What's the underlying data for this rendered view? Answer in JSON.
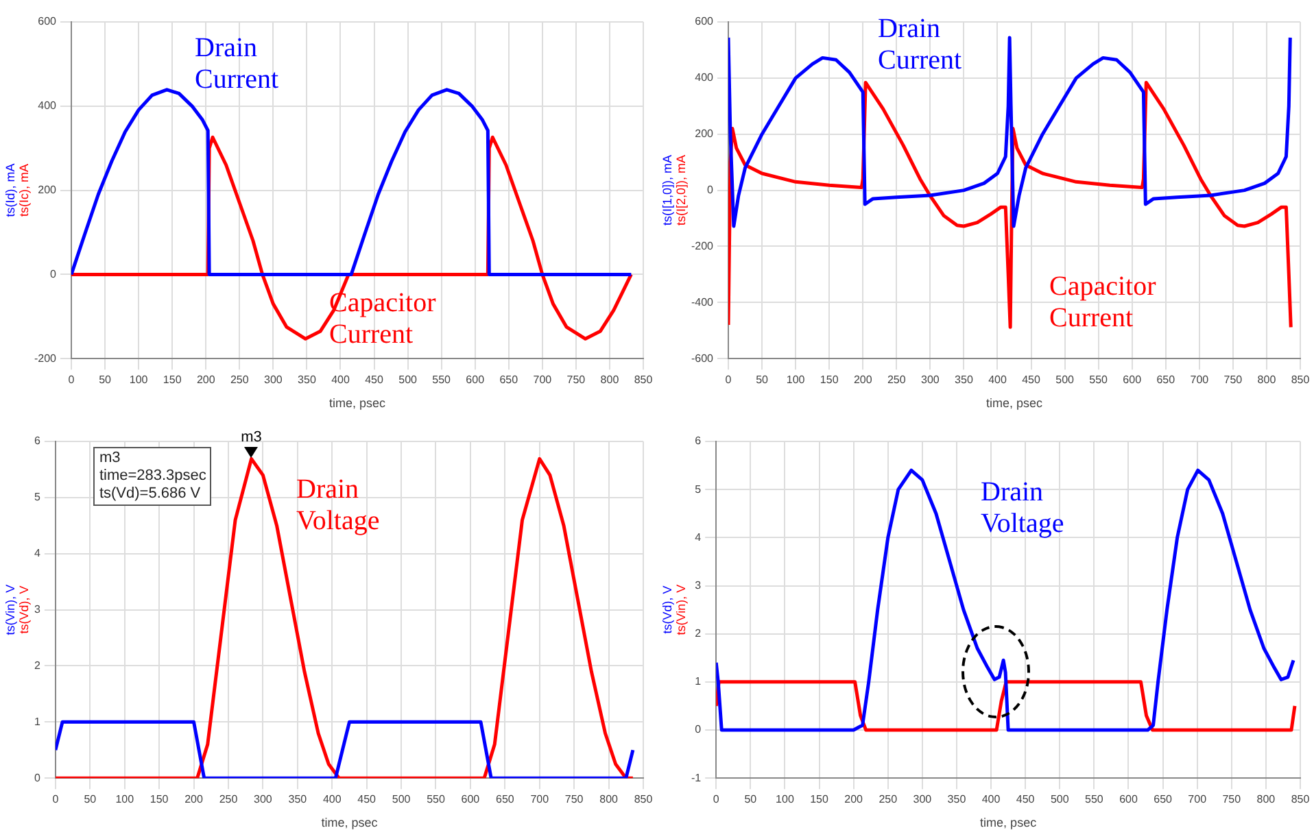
{
  "chart_data": [
    {
      "type": "line",
      "xlabel": "time, psec",
      "xlim": [
        0,
        850
      ],
      "xticks": [
        0,
        50,
        100,
        150,
        200,
        250,
        300,
        350,
        400,
        450,
        500,
        550,
        600,
        650,
        700,
        750,
        800,
        850
      ],
      "ylim": [
        -200,
        600
      ],
      "yticks": [
        -200,
        0,
        200,
        400,
        600
      ],
      "grid": true,
      "marker": "none",
      "line_style": "solid",
      "annotations": [
        "Drain Current",
        "Capacitor Current"
      ],
      "series": [
        {
          "name": "ts(Id), mA",
          "color": "#0000ff",
          "x": [
            0,
            20,
            40,
            60,
            80,
            100,
            120,
            142,
            160,
            180,
            195,
            203,
            205,
            416,
            436,
            456,
            476,
            496,
            516,
            536,
            558,
            576,
            596,
            611,
            619,
            621,
            832
          ],
          "values": [
            0,
            96,
            190,
            269,
            339,
            391,
            426,
            439,
            430,
            399,
            367,
            342,
            0,
            0,
            96,
            190,
            269,
            339,
            391,
            426,
            439,
            430,
            399,
            367,
            342,
            0,
            0
          ]
        },
        {
          "name": "ts(Ic), mA",
          "color": "#ff0000",
          "x": [
            0,
            203,
            205,
            210,
            230,
            250,
            270,
            284,
            300,
            320,
            348,
            370,
            390,
            412,
            619,
            621,
            626,
            646,
            666,
            686,
            700,
            716,
            736,
            764,
            786,
            806,
            832
          ],
          "values": [
            0,
            0,
            300,
            326,
            260,
            170,
            80,
            0,
            -70,
            -125,
            -153,
            -135,
            -85,
            0,
            0,
            300,
            326,
            260,
            170,
            80,
            0,
            -70,
            -125,
            -153,
            -135,
            -85,
            0
          ]
        }
      ]
    },
    {
      "type": "line",
      "xlabel": "time, psec",
      "xlim": [
        0,
        850
      ],
      "xticks": [
        0,
        50,
        100,
        150,
        200,
        250,
        300,
        350,
        400,
        450,
        500,
        550,
        600,
        650,
        700,
        750,
        800,
        850
      ],
      "ylim": [
        -600,
        600
      ],
      "yticks": [
        -600,
        -400,
        -200,
        0,
        200,
        400,
        600
      ],
      "grid": true,
      "marker": "none",
      "line_style": "solid",
      "annotations": [
        "Drain Current",
        "Capacitor Current"
      ],
      "series": [
        {
          "name": "ts(I[1,0]), mA",
          "color": "#0000ff",
          "x": [
            0,
            3,
            8,
            15,
            25,
            50,
            75,
            100,
            125,
            140,
            160,
            180,
            200,
            203,
            215,
            250,
            300,
            350,
            380,
            400,
            412,
            416,
            418,
            420,
            424,
            432,
            442,
            467,
            492,
            517,
            542,
            557,
            577,
            597,
            617,
            620,
            632,
            667,
            717,
            767,
            797,
            817,
            829,
            833,
            835
          ],
          "values": [
            544,
            200,
            -128,
            -20,
            80,
            200,
            300,
            400,
            450,
            472,
            465,
            420,
            350,
            -50,
            -30,
            -25,
            -18,
            0,
            25,
            60,
            120,
            300,
            544,
            300,
            -128,
            -20,
            80,
            200,
            300,
            400,
            450,
            472,
            465,
            420,
            350,
            -50,
            -30,
            -25,
            -18,
            0,
            25,
            60,
            120,
            300,
            544
          ]
        },
        {
          "name": "ts(I[2,0]), mA",
          "color": "#ff0000",
          "x": [
            0,
            3,
            6,
            12,
            25,
            50,
            100,
            150,
            198,
            200,
            204,
            230,
            260,
            285,
            300,
            320,
            340,
            350,
            370,
            390,
            405,
            412,
            416,
            419,
            421,
            423,
            429,
            442,
            467,
            517,
            567,
            615,
            617,
            621,
            647,
            677,
            702,
            717,
            737,
            757,
            767,
            787,
            807,
            822,
            829,
            833,
            836
          ],
          "values": [
            -480,
            100,
            220,
            150,
            90,
            60,
            30,
            18,
            10,
            40,
            384,
            290,
            160,
            40,
            -20,
            -90,
            -125,
            -128,
            -115,
            -85,
            -60,
            -60,
            -300,
            -488,
            -100,
            220,
            150,
            90,
            60,
            30,
            18,
            10,
            40,
            384,
            290,
            160,
            40,
            -20,
            -90,
            -125,
            -128,
            -115,
            -85,
            -60,
            -60,
            -300,
            -488
          ]
        }
      ]
    },
    {
      "type": "line",
      "xlabel": "time, psec",
      "xlim": [
        0,
        850
      ],
      "xticks": [
        0,
        50,
        100,
        150,
        200,
        250,
        300,
        350,
        400,
        450,
        500,
        550,
        600,
        650,
        700,
        750,
        800,
        850
      ],
      "ylim": [
        0,
        6
      ],
      "yticks": [
        0,
        1,
        2,
        3,
        4,
        5,
        6
      ],
      "grid": true,
      "marker": "none",
      "line_style": "solid",
      "annotations": [
        {
          "text": "m3",
          "x": 283.3,
          "y": 5.69
        },
        "m3",
        "time=283.3psec",
        "ts(Vd)=5.686 V",
        "Drain Voltage"
      ],
      "series": [
        {
          "name": "ts(Vin), V",
          "color": "#0000ff",
          "x": [
            0,
            10,
            200,
            215,
            405,
            425,
            615,
            630,
            825,
            835
          ],
          "values": [
            0.5,
            1,
            1,
            0,
            0,
            1,
            1,
            0,
            0,
            0.5
          ]
        },
        {
          "name": "ts(Vd), V",
          "color": "#ff0000",
          "x": [
            0,
            205,
            220,
            240,
            260,
            283.3,
            300,
            320,
            340,
            360,
            380,
            395,
            410,
            620,
            635,
            655,
            675,
            700,
            715,
            735,
            755,
            775,
            795,
            810,
            825,
            835
          ],
          "values": [
            0,
            0,
            0.6,
            2.6,
            4.6,
            5.69,
            5.4,
            4.5,
            3.2,
            1.9,
            0.8,
            0.25,
            0,
            0,
            0.6,
            2.6,
            4.6,
            5.69,
            5.4,
            4.5,
            3.2,
            1.9,
            0.8,
            0.25,
            0,
            0
          ]
        }
      ]
    },
    {
      "type": "line",
      "xlabel": "time, psec",
      "xlim": [
        0,
        850
      ],
      "xticks": [
        0,
        50,
        100,
        150,
        200,
        250,
        300,
        350,
        400,
        450,
        500,
        550,
        600,
        650,
        700,
        750,
        800,
        850
      ],
      "ylim": [
        -1,
        6
      ],
      "yticks": [
        -1,
        0,
        1,
        2,
        3,
        4,
        5,
        6
      ],
      "grid": true,
      "marker": "none",
      "line_style": "solid",
      "annotations": [
        "Drain Voltage"
      ],
      "series": [
        {
          "name": "ts(Vd), V",
          "color": "#0000ff",
          "x": [
            0,
            3,
            8,
            200,
            213,
            222,
            235,
            250,
            265,
            284,
            300,
            320,
            340,
            360,
            380,
            395,
            405,
            412,
            418,
            421,
            425,
            628,
            636,
            643,
            656,
            671,
            686,
            701,
            717,
            737,
            757,
            777,
            797,
            812,
            822,
            832,
            840
          ],
          "values": [
            1.4,
            1,
            0,
            0,
            0.1,
            1,
            2.5,
            4,
            5,
            5.4,
            5.2,
            4.5,
            3.5,
            2.5,
            1.7,
            1.3,
            1.05,
            1.1,
            1.45,
            1.2,
            0,
            0,
            0.1,
            1,
            2.5,
            4,
            5,
            5.4,
            5.2,
            4.5,
            3.5,
            2.5,
            1.7,
            1.3,
            1.05,
            1.1,
            1.45
          ]
        },
        {
          "name": "ts(Vin), V",
          "color": "#ff0000",
          "x": [
            0,
            4,
            202,
            210,
            218,
            408,
            415,
            422,
            618,
            626,
            635,
            837,
            842
          ],
          "values": [
            0.5,
            1,
            1,
            0.3,
            0,
            0,
            0.6,
            1,
            1,
            0.3,
            0,
            0,
            0.5
          ]
        }
      ]
    }
  ]
}
